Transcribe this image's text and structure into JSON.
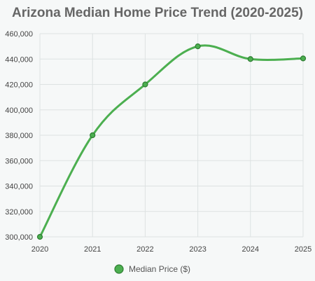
{
  "chart_data": {
    "type": "line",
    "title": "Arizona Median Home Price Trend (2020-2025)",
    "xlabel": "",
    "ylabel": "",
    "categories": [
      "2020",
      "2021",
      "2022",
      "2023",
      "2024",
      "2025"
    ],
    "series": [
      {
        "name": "Median Price ($)",
        "values": [
          300000,
          380000,
          420000,
          450000,
          440000,
          440500
        ],
        "color": "#4caf50",
        "point_color": "#2e7d32"
      }
    ],
    "ylim": [
      300000,
      460000
    ],
    "y_ticks": [
      "300,000",
      "320,000",
      "340,000",
      "360,000",
      "380,000",
      "400,000",
      "420,000",
      "440,000",
      "460,000"
    ],
    "grid": true,
    "grid_color": "#dde2e2",
    "legend_position": "bottom-center"
  }
}
